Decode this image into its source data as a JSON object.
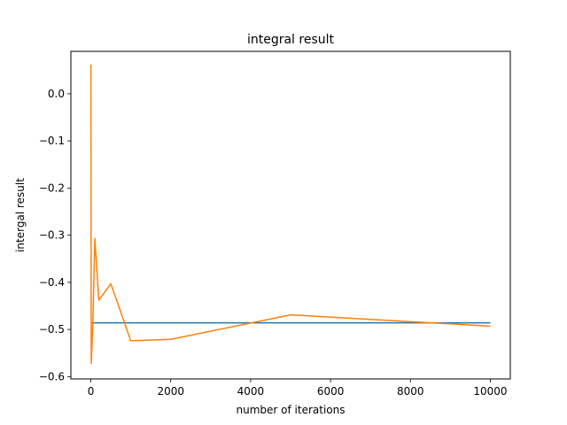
{
  "chart_data": {
    "type": "line",
    "title": "integral result",
    "xlabel": "number of iterations",
    "ylabel": "intergal result",
    "xlim": [
      -500,
      10500
    ],
    "ylim": [
      -0.605,
      0.09
    ],
    "xticks": [
      0,
      2000,
      4000,
      6000,
      8000,
      10000
    ],
    "xtick_labels": [
      "0",
      "2000",
      "4000",
      "6000",
      "8000",
      "10000"
    ],
    "yticks": [
      -0.6,
      -0.5,
      -0.4,
      -0.3,
      -0.2,
      -0.1,
      0.0
    ],
    "ytick_labels": [
      "−0.6",
      "−0.5",
      "−0.4",
      "−0.3",
      "−0.2",
      "−0.1",
      "0.0"
    ],
    "grid": false,
    "legend": "none",
    "series": [
      {
        "color": "#1f77b4",
        "x": [
          10,
          10000
        ],
        "y": [
          -0.486,
          -0.486
        ]
      },
      {
        "color": "#ff7f0e",
        "x": [
          1,
          10,
          50,
          100,
          200,
          500,
          1000,
          2000,
          5000,
          10000
        ],
        "y": [
          0.062,
          -0.572,
          -0.488,
          -0.307,
          -0.438,
          -0.403,
          -0.524,
          -0.521,
          -0.469,
          -0.493
        ]
      }
    ]
  }
}
